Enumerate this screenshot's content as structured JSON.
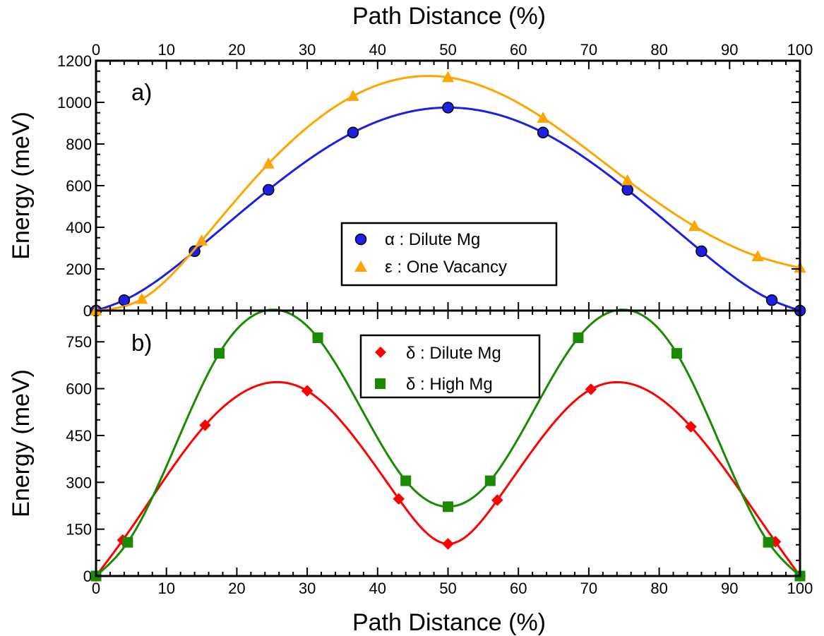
{
  "figure": {
    "top_axis_label": "Path Distance (%)",
    "bottom_axis_label": "Path Distance (%)"
  },
  "chart_data": [
    {
      "panel_label": "a)",
      "type": "line",
      "xlabel": "Path Distance (%)",
      "ylabel": "Energy (meV)",
      "xlim": [
        0,
        100
      ],
      "ylim": [
        0,
        1200
      ],
      "x_ticks": [
        0,
        10,
        20,
        30,
        40,
        50,
        60,
        70,
        80,
        90,
        100
      ],
      "y_ticks": [
        0,
        200,
        400,
        600,
        800,
        1000,
        1200
      ],
      "legend_position": "center-right",
      "series": [
        {
          "name": "α : Dilute Mg",
          "color": "#1e1ee6",
          "marker": "circle",
          "marker_color": "#1e1ee6",
          "points": [
            [
              0,
              0
            ],
            [
              4,
              50
            ],
            [
              14,
              285
            ],
            [
              24.5,
              580
            ],
            [
              36.5,
              855
            ],
            [
              50,
              975
            ],
            [
              63.5,
              855
            ],
            [
              75.5,
              580
            ],
            [
              86,
              285
            ],
            [
              96,
              50
            ],
            [
              100,
              0
            ]
          ]
        },
        {
          "name": "ε : One Vacancy",
          "color": "#ffa500",
          "marker": "triangle",
          "marker_color": "#ffa500",
          "points": [
            [
              0,
              0
            ],
            [
              6.5,
              55
            ],
            [
              15,
              335
            ],
            [
              24.5,
              705
            ],
            [
              36.5,
              1030
            ],
            [
              50,
              1120
            ],
            [
              63.5,
              925
            ],
            [
              75.5,
              625
            ],
            [
              85,
              405
            ],
            [
              94,
              260
            ],
            [
              100,
              205
            ]
          ]
        }
      ]
    },
    {
      "panel_label": "b)",
      "type": "line",
      "xlabel": "Path Distance (%)",
      "ylabel": "Energy (meV)",
      "xlim": [
        0,
        100
      ],
      "ylim": [
        0,
        850
      ],
      "x_ticks": [
        0,
        10,
        20,
        30,
        40,
        50,
        60,
        70,
        80,
        90,
        100
      ],
      "y_ticks": [
        0,
        150,
        300,
        450,
        600,
        750
      ],
      "legend_position": "top-center",
      "series": [
        {
          "name": "δ : Dilute Mg",
          "color": "#ff0000",
          "marker": "diamond",
          "marker_color": "#ff0000",
          "points": [
            [
              0,
              0
            ],
            [
              3.8,
              115
            ],
            [
              15.5,
              483
            ],
            [
              30,
              593
            ],
            [
              43,
              247
            ],
            [
              50,
              103
            ],
            [
              57,
              243
            ],
            [
              70.3,
              598
            ],
            [
              84.5,
              478
            ],
            [
              96.5,
              110
            ],
            [
              100,
              0
            ]
          ]
        },
        {
          "name": "δ : High Mg",
          "color": "#1a8a00",
          "marker": "square",
          "marker_color": "#1a8a00",
          "points": [
            [
              0,
              0
            ],
            [
              4.5,
              108
            ],
            [
              17.5,
              713
            ],
            [
              31.5,
              763
            ],
            [
              44,
              305
            ],
            [
              50,
              222
            ],
            [
              56,
              305
            ],
            [
              68.5,
              763
            ],
            [
              82.5,
              713
            ],
            [
              95.5,
              108
            ],
            [
              100,
              0
            ]
          ]
        }
      ]
    }
  ]
}
